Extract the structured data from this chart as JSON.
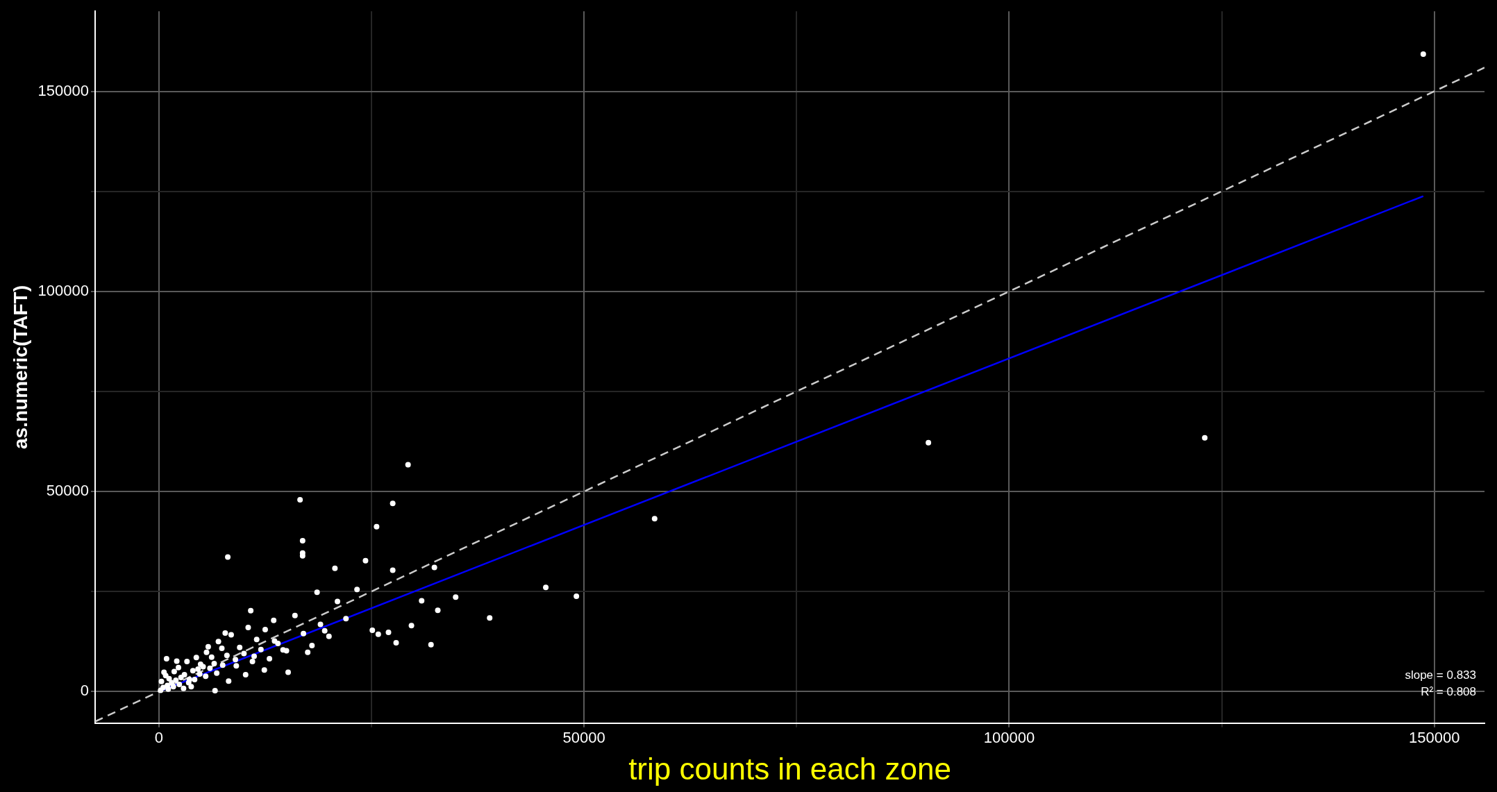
{
  "chart_data": {
    "type": "scatter",
    "xlabel": "trip counts in each zone",
    "ylabel": "as.numeric(TAFT)",
    "xlim": [
      -7500,
      155900
    ],
    "ylim": [
      -7900,
      170000
    ],
    "xticks": [
      0,
      {
        "value": 25000,
        "label": null
      },
      50000,
      {
        "value": 75000,
        "label": null
      },
      100000,
      {
        "value": 125000,
        "label": null
      },
      150000
    ],
    "yticks": [
      0,
      {
        "value": 25000,
        "label": null
      },
      50000,
      {
        "value": 75000,
        "label": null
      },
      100000,
      {
        "value": 125000,
        "label": null
      },
      150000
    ],
    "grid": true,
    "legend": false,
    "marker": "circle",
    "annotations": [
      "slope = 0.833",
      "R² = 0.808"
    ],
    "series": [
      {
        "type": "scatter",
        "color": "#ffffff",
        "x": [
          148700,
          90500,
          123000,
          58300,
          29300,
          27500,
          16600,
          8100,
          16900,
          16900,
          16900,
          25600,
          20700,
          24300,
          27500,
          32400,
          45500,
          49100,
          38900,
          34900,
          30900,
          32800,
          32000,
          27900,
          29700,
          27000,
          25800,
          25100,
          23300,
          200,
          300,
          500,
          800,
          1000,
          1200,
          1500,
          1800,
          2000,
          2300,
          2600,
          3000,
          3300,
          3600,
          4000,
          4400,
          4800,
          5200,
          5600,
          6000,
          6500,
          7000,
          7500,
          8000,
          8500,
          9000,
          9500,
          10000,
          10500,
          11000,
          11500,
          12000,
          12500,
          13000,
          13500,
          14000,
          15000,
          16000,
          17000,
          18000,
          19000,
          20000,
          21000,
          22000,
          600,
          1100,
          1700,
          2400,
          2900,
          3500,
          4200,
          4900,
          5500,
          6200,
          6800,
          7400,
          8200,
          9100,
          10200,
          11200,
          12400,
          13600,
          15200,
          17500,
          19500,
          3800,
          5800,
          7800,
          6600,
          2100,
          900,
          4600,
          10800,
          14600,
          18600
        ],
        "values": [
          159300,
          62200,
          63400,
          43200,
          56700,
          47000,
          47900,
          33600,
          37700,
          34600,
          33900,
          41200,
          30800,
          32700,
          30300,
          31000,
          26000,
          23800,
          18400,
          23600,
          22700,
          20300,
          11700,
          12200,
          16500,
          14800,
          14300,
          15300,
          25500,
          300,
          2500,
          1000,
          4000,
          1500,
          3200,
          2200,
          5000,
          2800,
          6000,
          3500,
          4200,
          7500,
          3000,
          5200,
          8500,
          4400,
          6200,
          9800,
          5800,
          7000,
          12500,
          6600,
          9000,
          14200,
          8000,
          11000,
          9500,
          16000,
          7500,
          13000,
          10500,
          15500,
          8200,
          17800,
          12000,
          10200,
          19000,
          14500,
          11500,
          16800,
          13800,
          22500,
          18200,
          4800,
          600,
          1200,
          1800,
          800,
          2200,
          3000,
          6800,
          3800,
          8600,
          4600,
          10800,
          2600,
          6400,
          4200,
          8800,
          5400,
          12600,
          4800,
          9800,
          15200,
          1200,
          11200,
          14600,
          200,
          7600,
          8200,
          5600,
          20200,
          10400,
          24800
        ]
      },
      {
        "type": "line",
        "color": "#0000ff",
        "x": [
          0,
          148700
        ],
        "values": [
          0,
          123800
        ],
        "marker": "none",
        "line_style": "solid"
      },
      {
        "type": "line",
        "color": "#cccccc",
        "x": [
          -7500,
          155900
        ],
        "values": [
          -7500,
          155900
        ],
        "marker": "none",
        "line_style": "dashed"
      }
    ]
  }
}
